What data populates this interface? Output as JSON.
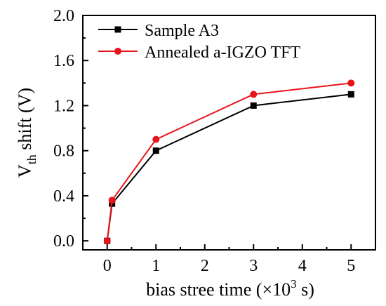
{
  "chart_data": {
    "type": "line",
    "x_label_parts": [
      "bias stree time (×10",
      "3",
      " s)"
    ],
    "y_label_parts": [
      "V",
      "th",
      " shift (V)"
    ],
    "xlim": [
      -0.5,
      5.5
    ],
    "ylim": [
      -0.08,
      2.0
    ],
    "xticks": [
      0,
      1,
      2,
      3,
      4,
      5
    ],
    "xtick_labels": [
      "0",
      "1",
      "2",
      "3",
      "4",
      "5"
    ],
    "yticks": [
      0.0,
      0.4,
      0.8,
      1.2,
      1.6,
      2.0
    ],
    "ytick_labels": [
      "0.0",
      "0.4",
      "0.8",
      "1.2",
      "1.6",
      "2.0"
    ],
    "grid": false,
    "legend_position": "top-left",
    "series": [
      {
        "name": "Sample A3",
        "color": "#000000",
        "marker": "square",
        "x": [
          0,
          0.1,
          1,
          3,
          5
        ],
        "y": [
          0.0,
          0.33,
          0.8,
          1.2,
          1.3
        ]
      },
      {
        "name": "Annealed a-IGZO TFT",
        "color": "#e8141b",
        "marker": "circle",
        "x": [
          0,
          0.1,
          1,
          3,
          5
        ],
        "y": [
          0.0,
          0.36,
          0.9,
          1.3,
          1.4
        ]
      }
    ]
  }
}
